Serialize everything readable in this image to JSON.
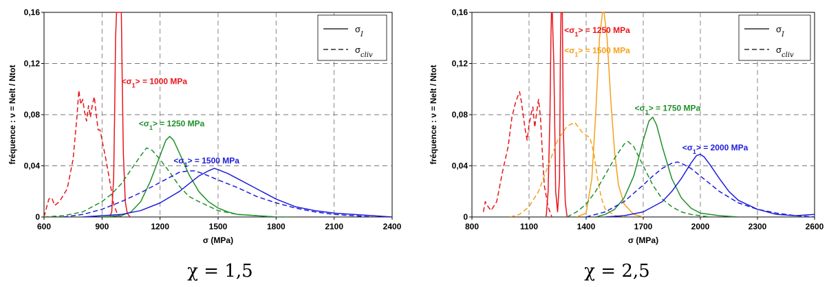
{
  "chart_data": [
    {
      "type": "line",
      "caption": "χ = 1,5",
      "xlabel": "σ (MPa)",
      "ylabel": "fréquence : ν = Nelt / Ntot",
      "xlim": [
        600,
        2400
      ],
      "ylim": [
        0,
        0.16
      ],
      "x_ticks": [
        "600",
        "900",
        "1200",
        "1500",
        "1800",
        "2100",
        "2400"
      ],
      "y_ticks": [
        "0",
        "0,04",
        "0,08",
        "0,12",
        "0,16"
      ],
      "grid": true,
      "legend": {
        "position": "top-right",
        "entries": [
          {
            "symbol": "σ",
            "subscript": "I",
            "style": "solid"
          },
          {
            "symbol": "σ",
            "subscript": "cliv",
            "style": "dashed"
          }
        ]
      },
      "annotations": [
        {
          "pre": "<σ",
          "sub": "1",
          "post": "> = 1000 MPa",
          "color": "#e8141b",
          "x": 1000,
          "y": 0.104
        },
        {
          "pre": "<σ",
          "sub": "1",
          "post": "> = 1250 MPa",
          "color": "#1f8f2a",
          "x": 1090,
          "y": 0.071
        },
        {
          "pre": "<σ",
          "sub": "1",
          "post": "> = 1500 MPa",
          "color": "#1c1cdc",
          "x": 1270,
          "y": 0.042
        }
      ],
      "series": [
        {
          "color": "#e8141b",
          "style": "dashed",
          "x": [
            600,
            625,
            640,
            655,
            680,
            720,
            750,
            770,
            780,
            790,
            800,
            810,
            820,
            830,
            840,
            850,
            860,
            870,
            880,
            890,
            900,
            920,
            940,
            960,
            980,
            1000
          ],
          "y": [
            0,
            0.014,
            0.015,
            0.009,
            0.012,
            0.022,
            0.045,
            0.078,
            0.099,
            0.088,
            0.092,
            0.082,
            0.075,
            0.087,
            0.078,
            0.088,
            0.094,
            0.08,
            0.068,
            0.068,
            0.06,
            0.045,
            0.028,
            0.01,
            0.002,
            0
          ]
        },
        {
          "color": "#e8141b",
          "style": "solid",
          "x": [
            940,
            950,
            960,
            965,
            970,
            975,
            1000,
            1003,
            1010,
            1020,
            1030,
            1045
          ],
          "y": [
            0,
            0.004,
            0.03,
            0.08,
            0.14,
            0.16,
            0.16,
            0.12,
            0.05,
            0.012,
            0.003,
            0
          ]
        },
        {
          "color": "#1f8f2a",
          "style": "dashed",
          "x": [
            600,
            700,
            800,
            900,
            950,
            1000,
            1050,
            1100,
            1130,
            1160,
            1200,
            1250,
            1300,
            1350,
            1400,
            1500,
            1600,
            1700,
            1800,
            1900
          ],
          "y": [
            0,
            0.001,
            0.004,
            0.012,
            0.018,
            0.026,
            0.037,
            0.048,
            0.054,
            0.052,
            0.045,
            0.035,
            0.024,
            0.016,
            0.012,
            0.005,
            0.002,
            0.001,
            0,
            0
          ]
        },
        {
          "color": "#1f8f2a",
          "style": "solid",
          "x": [
            900,
            1000,
            1050,
            1100,
            1150,
            1200,
            1230,
            1250,
            1270,
            1300,
            1350,
            1400,
            1450,
            1500,
            1550,
            1600,
            1700,
            1800
          ],
          "y": [
            0,
            0.001,
            0.004,
            0.012,
            0.028,
            0.048,
            0.06,
            0.063,
            0.06,
            0.05,
            0.033,
            0.02,
            0.012,
            0.007,
            0.004,
            0.002,
            0.001,
            0
          ]
        },
        {
          "color": "#1c1cdc",
          "style": "dashed",
          "x": [
            700,
            800,
            900,
            1000,
            1100,
            1200,
            1250,
            1300,
            1350,
            1380,
            1420,
            1500,
            1600,
            1700,
            1800,
            1900,
            2000,
            2100,
            2200,
            2300
          ],
          "y": [
            0,
            0.002,
            0.006,
            0.012,
            0.019,
            0.027,
            0.031,
            0.035,
            0.036,
            0.036,
            0.034,
            0.029,
            0.023,
            0.016,
            0.011,
            0.007,
            0.004,
            0.002,
            0.001,
            0
          ]
        },
        {
          "color": "#1c1cdc",
          "style": "solid",
          "x": [
            800,
            900,
            1000,
            1100,
            1200,
            1300,
            1350,
            1400,
            1450,
            1480,
            1500,
            1550,
            1600,
            1700,
            1800,
            1900,
            2000,
            2100,
            2200,
            2300,
            2400
          ],
          "y": [
            0,
            0.001,
            0.002,
            0.005,
            0.011,
            0.02,
            0.026,
            0.032,
            0.036,
            0.038,
            0.037,
            0.034,
            0.03,
            0.022,
            0.014,
            0.008,
            0.005,
            0.003,
            0.002,
            0.001,
            0
          ]
        }
      ]
    },
    {
      "type": "line",
      "caption": "χ = 2,5",
      "xlabel": "σ (MPa)",
      "ylabel": "fréquence : ν = Nelt / Ntot",
      "xlim": [
        800,
        2600
      ],
      "ylim": [
        0,
        0.16
      ],
      "x_ticks": [
        "800",
        "1100",
        "1400",
        "1700",
        "2000",
        "2300",
        "2600"
      ],
      "y_ticks": [
        "0",
        "0,04",
        "0,08",
        "0,12",
        "0,16"
      ],
      "grid": true,
      "legend": {
        "position": "top-right",
        "entries": [
          {
            "symbol": "σ",
            "subscript": "I",
            "style": "solid"
          },
          {
            "symbol": "σ",
            "subscript": "cliv",
            "style": "dashed"
          }
        ]
      },
      "annotations": [
        {
          "pre": "<σ",
          "sub": "1",
          "post": "> = 1250 MPa",
          "color": "#e8141b",
          "x": 1285,
          "y": 0.144
        },
        {
          "pre": "<σ",
          "sub": "1",
          "post": "> = 1500 MPa",
          "color": "#f5a01a",
          "x": 1285,
          "y": 0.128
        },
        {
          "pre": "<σ",
          "sub": "1",
          "post": "> = 1750 MPa",
          "color": "#1f8f2a",
          "x": 1655,
          "y": 0.083
        },
        {
          "pre": "<σ",
          "sub": "1",
          "post": "> = 2000 MPa",
          "color": "#1c1cdc",
          "x": 1905,
          "y": 0.052
        }
      ],
      "series": [
        {
          "color": "#e8141b",
          "style": "dashed",
          "x": [
            860,
            870,
            880,
            900,
            930,
            960,
            990,
            1010,
            1030,
            1050,
            1060,
            1080,
            1090,
            1100,
            1110,
            1120,
            1130,
            1140,
            1150,
            1160,
            1170,
            1180,
            1200,
            1220
          ],
          "y": [
            0.004,
            0.012,
            0.009,
            0.005,
            0.012,
            0.035,
            0.055,
            0.078,
            0.09,
            0.098,
            0.09,
            0.068,
            0.06,
            0.072,
            0.08,
            0.086,
            0.07,
            0.082,
            0.092,
            0.078,
            0.05,
            0.025,
            0.008,
            0
          ]
        },
        {
          "color": "#e8141b",
          "style": "solid",
          "x": [
            1190,
            1200,
            1210,
            1215,
            1218,
            1222,
            1230,
            1235,
            1240,
            1250,
            1260,
            1265,
            1268,
            1275,
            1280,
            1290,
            1300
          ],
          "y": [
            0,
            0.02,
            0.08,
            0.14,
            0.16,
            0.16,
            0.12,
            0.07,
            0.02,
            0.004,
            0.03,
            0.13,
            0.16,
            0.16,
            0.07,
            0.012,
            0
          ]
        },
        {
          "color": "#f5a01a",
          "style": "dashed",
          "x": [
            1000,
            1050,
            1100,
            1150,
            1200,
            1250,
            1300,
            1340,
            1360,
            1380,
            1400,
            1420,
            1440,
            1460,
            1480,
            1500,
            1550,
            1600
          ],
          "y": [
            0,
            0.002,
            0.008,
            0.02,
            0.04,
            0.06,
            0.071,
            0.074,
            0.07,
            0.066,
            0.064,
            0.062,
            0.05,
            0.03,
            0.015,
            0.006,
            0.001,
            0
          ]
        },
        {
          "color": "#f5a01a",
          "style": "solid",
          "x": [
            1350,
            1400,
            1430,
            1450,
            1470,
            1490,
            1510,
            1530,
            1550,
            1570,
            1600,
            1650,
            1700
          ],
          "y": [
            0,
            0.003,
            0.03,
            0.08,
            0.14,
            0.165,
            0.14,
            0.09,
            0.05,
            0.025,
            0.01,
            0.002,
            0
          ]
        },
        {
          "color": "#1f8f2a",
          "style": "dashed",
          "x": [
            1300,
            1350,
            1400,
            1450,
            1500,
            1550,
            1600,
            1620,
            1650,
            1700,
            1750,
            1800,
            1850,
            1900,
            1950,
            2000,
            2050
          ],
          "y": [
            0,
            0.004,
            0.01,
            0.02,
            0.033,
            0.046,
            0.057,
            0.059,
            0.055,
            0.04,
            0.025,
            0.014,
            0.008,
            0.004,
            0.002,
            0.001,
            0
          ]
        },
        {
          "color": "#1f8f2a",
          "style": "solid",
          "x": [
            1450,
            1500,
            1550,
            1600,
            1650,
            1700,
            1730,
            1750,
            1770,
            1800,
            1850,
            1900,
            1950,
            2000,
            2100,
            2200
          ],
          "y": [
            0,
            0.002,
            0.006,
            0.015,
            0.032,
            0.06,
            0.075,
            0.078,
            0.072,
            0.055,
            0.03,
            0.015,
            0.007,
            0.003,
            0.001,
            0
          ]
        },
        {
          "color": "#1c1cdc",
          "style": "dashed",
          "x": [
            1400,
            1500,
            1600,
            1700,
            1750,
            1800,
            1850,
            1880,
            1900,
            1950,
            2000,
            2100,
            2200,
            2300,
            2400,
            2500,
            2600
          ],
          "y": [
            0,
            0.004,
            0.012,
            0.025,
            0.032,
            0.038,
            0.042,
            0.043,
            0.042,
            0.038,
            0.032,
            0.02,
            0.011,
            0.006,
            0.003,
            0.001,
            0
          ]
        },
        {
          "color": "#1c1cdc",
          "style": "solid",
          "x": [
            1500,
            1600,
            1700,
            1800,
            1850,
            1900,
            1950,
            1980,
            2000,
            2020,
            2050,
            2100,
            2150,
            2200,
            2300,
            2400,
            2500,
            2600
          ],
          "y": [
            0,
            0.001,
            0.004,
            0.012,
            0.02,
            0.03,
            0.042,
            0.048,
            0.049,
            0.047,
            0.041,
            0.03,
            0.02,
            0.013,
            0.006,
            0.002,
            0.001,
            0.002
          ]
        }
      ]
    }
  ]
}
